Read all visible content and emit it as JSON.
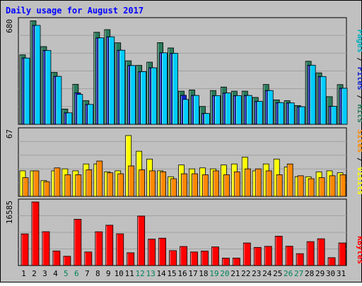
{
  "chart_data": {
    "type": "bar",
    "title": "Daily usage for August 2017",
    "categories": [
      "1",
      "2",
      "3",
      "4",
      "5",
      "6",
      "7",
      "8",
      "9",
      "10",
      "11",
      "12",
      "13",
      "14",
      "15",
      "16",
      "17",
      "18",
      "19",
      "20",
      "21",
      "22",
      "23",
      "24",
      "25",
      "26",
      "27",
      "28",
      "29",
      "30",
      "31"
    ],
    "weekend_days": [
      "5",
      "6",
      "12",
      "13",
      "19",
      "20",
      "26",
      "27"
    ],
    "grid": true,
    "panels": [
      {
        "name": "pages_files_hits",
        "ymax_label": "680",
        "ylim": [
          0,
          680
        ],
        "legend": [
          {
            "text": "Pages",
            "color": "#00b0c0"
          },
          {
            "text": "Files",
            "color": "#1020d0"
          },
          {
            "text": "Hits",
            "color": "#2a7a5a"
          }
        ],
        "series": [
          {
            "name": "Hits",
            "color": "#2a7a5a",
            "values": [
              455,
              678,
              509,
              340,
              100,
              262,
              155,
              603,
              620,
              534,
              416,
              386,
              407,
              535,
              500,
              217,
              225,
              117,
              221,
              244,
              217,
              217,
              176,
              261,
              160,
              155,
              123,
              413,
              337,
              181,
              260
            ]
          },
          {
            "name": "Files",
            "color": "#1020d0",
            "values": [
              434,
              648,
              484,
              314,
              75,
              206,
              130,
              566,
              573,
              485,
              385,
              345,
              370,
              468,
              465,
              190,
              189,
              71,
              188,
              205,
              188,
              189,
              150,
              221,
              142,
              140,
              115,
              387,
              313,
              118,
              236
            ]
          },
          {
            "name": "Pages",
            "color": "#00ccff",
            "values": [
              434,
              648,
              484,
              314,
              75,
              196,
              130,
              566,
              573,
              485,
              385,
              345,
              370,
              468,
              465,
              163,
              189,
              71,
              188,
              205,
              188,
              189,
              150,
              221,
              142,
              140,
              115,
              387,
              313,
              118,
              236
            ]
          }
        ]
      },
      {
        "name": "sites_visits",
        "ymax_label": "67",
        "ylim": [
          0,
          67
        ],
        "legend": [
          {
            "text": "Sites",
            "color": "#ff8800"
          },
          {
            "text": "Visits",
            "color": "#ffff00"
          }
        ],
        "series": [
          {
            "name": "Visits",
            "color": "#ffff00",
            "values": [
              26,
              26,
              16,
              26,
              28,
              26,
              33,
              33,
              25,
              26,
              62,
              46,
              38,
              26,
              20,
              32,
              28,
              29,
              28,
              32,
              33,
              40,
              26,
              33,
              38,
              30,
              20,
              20,
              25,
              26,
              24
            ]
          },
          {
            "name": "Sites",
            "color": "#ff8800",
            "values": [
              19,
              26,
              15,
              29,
              22,
              22,
              27,
              36,
              24,
              23,
              31,
              27,
              26,
              25,
              18,
              23,
              23,
              22,
              26,
              22,
              25,
              28,
              28,
              26,
              22,
              33,
              21,
              18,
              19,
              21,
              22
            ]
          }
        ]
      },
      {
        "name": "kbytes",
        "ymax_label": "16585",
        "ylim": [
          0,
          16585
        ],
        "legend": [
          {
            "text": "KBytes",
            "color": "#ff0000"
          }
        ],
        "series": [
          {
            "name": "KBytes",
            "color": "#ff0000",
            "values": [
              8260,
              16585,
              8830,
              3810,
              2420,
              12070,
              3540,
              8810,
              10530,
              8280,
              3330,
              12910,
              6890,
              7140,
              3890,
              4970,
              3540,
              3780,
              4860,
              1950,
              1950,
              5890,
              4730,
              5010,
              7660,
              5040,
              3100,
              6240,
              6980,
              2050,
              5890
            ]
          }
        ]
      }
    ]
  },
  "colors": {
    "page_background": "#ffffff",
    "frame_background": "#c0c0c0",
    "title": "#0000ff",
    "axis_text": "#000000",
    "weekend_label": "#00805a",
    "gridline": "#a0a0a0"
  }
}
